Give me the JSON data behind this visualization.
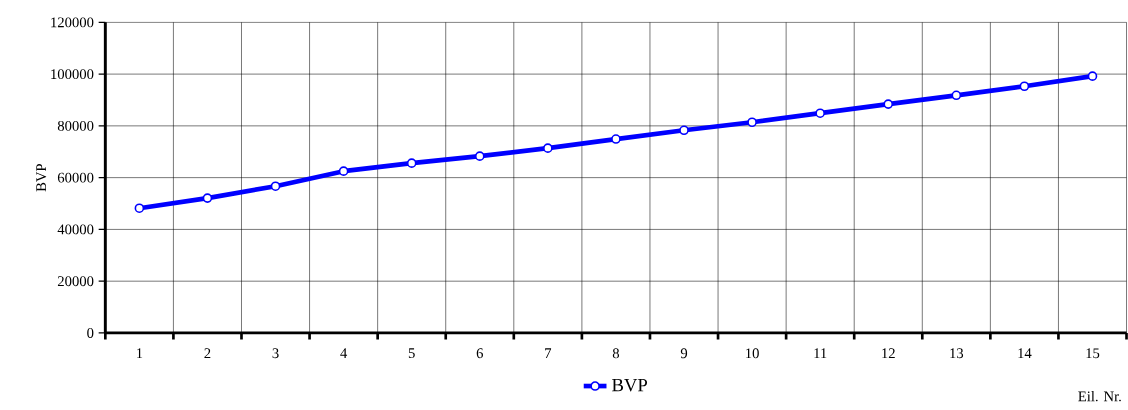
{
  "chart_data": {
    "type": "line",
    "xlabel": "Eil. Nr.",
    "ylabel": "BVP",
    "categories": [
      "1",
      "2",
      "3",
      "4",
      "5",
      "6",
      "7",
      "8",
      "9",
      "10",
      "11",
      "12",
      "13",
      "14",
      "15"
    ],
    "series": [
      {
        "name": "BVP",
        "color": "#0000ff",
        "values": [
          48200,
          52100,
          56700,
          62500,
          65600,
          68300,
          71400,
          74900,
          78300,
          81400,
          84900,
          88400,
          91800,
          95300,
          99200
        ]
      }
    ],
    "ylim": [
      0,
      120000
    ],
    "yticks": [
      0,
      20000,
      40000,
      60000,
      80000,
      100000,
      120000
    ],
    "grid": true,
    "legend": "bottom",
    "marker": "circle",
    "line_style": "solid"
  }
}
